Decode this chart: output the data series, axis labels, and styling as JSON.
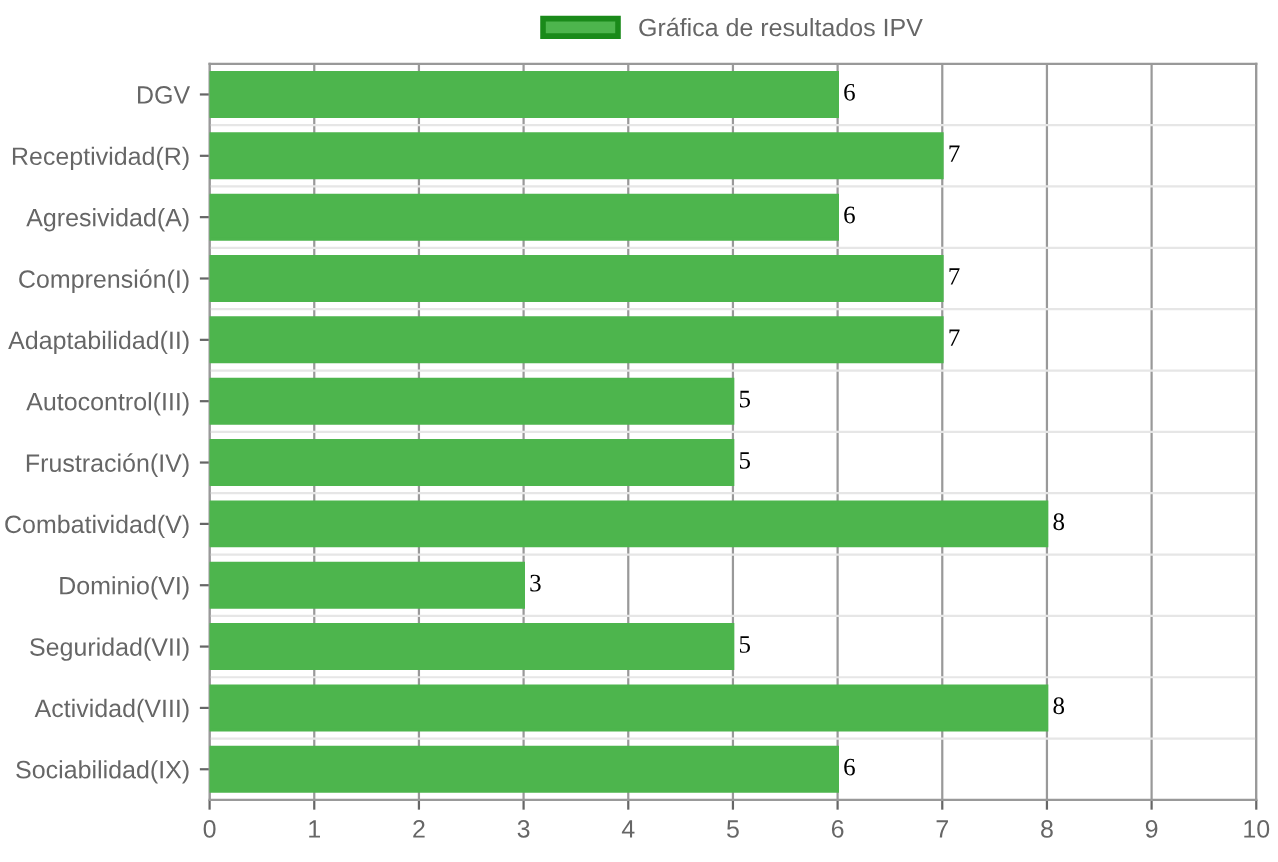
{
  "chart_data": {
    "type": "bar",
    "orientation": "horizontal",
    "categories": [
      "DGV",
      "Receptividad(R)",
      "Agresividad(A)",
      "Comprensión(I)",
      "Adaptabilidad(II)",
      "Autocontrol(III)",
      "Frustración(IV)",
      "Combatividad(V)",
      "Dominio(VI)",
      "Seguridad(VII)",
      "Actividad(VIII)",
      "Sociabilidad(IX)"
    ],
    "series": [
      {
        "name": "Gráfica de resultados IPV",
        "color": "#4db54d",
        "values": [
          6,
          7,
          6,
          7,
          7,
          5,
          5,
          8,
          3,
          5,
          8,
          6
        ]
      }
    ],
    "xlim": [
      0,
      10
    ],
    "xticks": [
      0,
      1,
      2,
      3,
      4,
      5,
      6,
      7,
      8,
      9,
      10
    ],
    "grid": true,
    "legend": "top",
    "data_labels": true
  }
}
